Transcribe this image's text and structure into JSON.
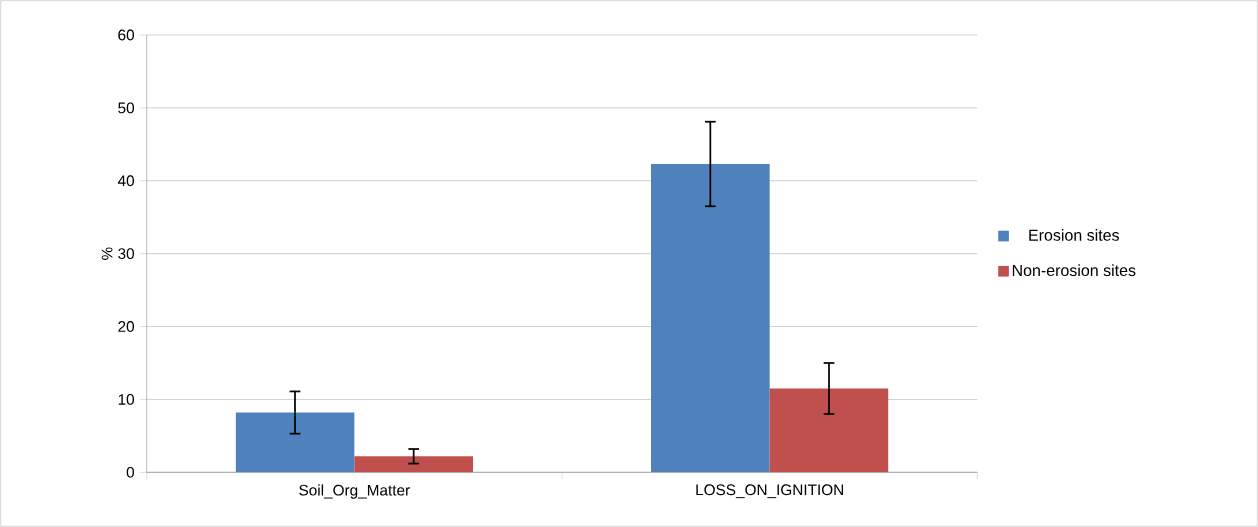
{
  "chart_data": {
    "type": "bar",
    "ylabel": "%",
    "categories": [
      "Soil_Org_Matter",
      "LOSS_ON_IGNITION"
    ],
    "series": [
      {
        "name": "Erosion sites",
        "color": "#4f81bd",
        "values": [
          8.2,
          42.3
        ],
        "errors": [
          2.9,
          5.8
        ]
      },
      {
        "name": "Non-erosion sites",
        "color": "#c0504d",
        "values": [
          2.2,
          11.5
        ],
        "errors": [
          1.0,
          3.5
        ]
      }
    ],
    "ylim": [
      0,
      60
    ],
    "yticks": [
      0,
      10,
      20,
      30,
      40,
      50,
      60
    ],
    "grid": "y",
    "legend": "right"
  }
}
